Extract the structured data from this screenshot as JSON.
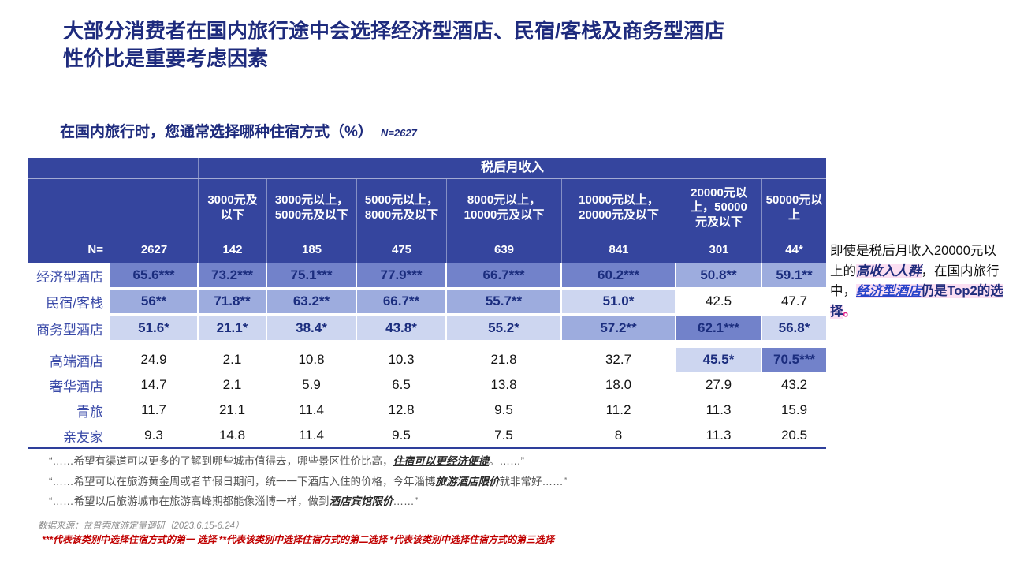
{
  "title": {
    "line1": "大部分消费者在国内旅行途中会选择经济型酒店、民宿/客栈及商务型酒店",
    "line2": "性价比是重要考虑因素"
  },
  "subtitle": {
    "text": "在国内旅行时，您通常选择哪种住宿方式（%）",
    "n": "N=2627"
  },
  "table": {
    "income_header": "税后月收入",
    "col_headers": [
      "3000元及\n以下",
      "3000元以上，\n5000元及以下",
      "5000元以上，\n8000元及以下",
      "8000元以上，\n10000元及以下",
      "10000元以上，\n20000元及以下",
      "20000元以\n上，50000\n元及以下",
      "50000元以\n上"
    ],
    "n_label": "N=",
    "n_values": [
      "2627",
      "142",
      "185",
      "475",
      "639",
      "841",
      "301",
      "44*"
    ],
    "rows": [
      {
        "label": "经济型酒店",
        "cells": [
          {
            "v": "65.6***",
            "s": 3
          },
          {
            "v": "73.2***",
            "s": 3
          },
          {
            "v": "75.1***",
            "s": 3
          },
          {
            "v": "77.9***",
            "s": 3
          },
          {
            "v": "66.7***",
            "s": 3
          },
          {
            "v": "60.2***",
            "s": 3
          },
          {
            "v": "50.8**",
            "s": 2
          },
          {
            "v": "59.1**",
            "s": 2
          }
        ]
      },
      {
        "label": "民宿/客栈",
        "cells": [
          {
            "v": "56**",
            "s": 2
          },
          {
            "v": "71.8**",
            "s": 2
          },
          {
            "v": "63.2**",
            "s": 2
          },
          {
            "v": "66.7**",
            "s": 2
          },
          {
            "v": "55.7**",
            "s": 2
          },
          {
            "v": "51.0*",
            "s": 1
          },
          {
            "v": "42.5",
            "s": 0
          },
          {
            "v": "47.7",
            "s": 0
          }
        ]
      },
      {
        "label": "商务型酒店",
        "cells": [
          {
            "v": "51.6*",
            "s": 1
          },
          {
            "v": "21.1*",
            "s": 1
          },
          {
            "v": "38.4*",
            "s": 1
          },
          {
            "v": "43.8*",
            "s": 1
          },
          {
            "v": "55.2*",
            "s": 1
          },
          {
            "v": "57.2**",
            "s": 2
          },
          {
            "v": "62.1***",
            "s": 3
          },
          {
            "v": "56.8*",
            "s": 1
          }
        ]
      },
      {
        "label": "高端酒店",
        "cells": [
          {
            "v": "24.9",
            "s": 0
          },
          {
            "v": "2.1",
            "s": 0
          },
          {
            "v": "10.8",
            "s": 0
          },
          {
            "v": "10.3",
            "s": 0
          },
          {
            "v": "21.8",
            "s": 0
          },
          {
            "v": "32.7",
            "s": 0
          },
          {
            "v": "45.5*",
            "s": 1
          },
          {
            "v": "70.5***",
            "s": 3
          }
        ]
      },
      {
        "label": "奢华酒店",
        "cells": [
          {
            "v": "14.7",
            "s": 0
          },
          {
            "v": "2.1",
            "s": 0
          },
          {
            "v": "5.9",
            "s": 0
          },
          {
            "v": "6.5",
            "s": 0
          },
          {
            "v": "13.8",
            "s": 0
          },
          {
            "v": "18.0",
            "s": 0
          },
          {
            "v": "27.9",
            "s": 0
          },
          {
            "v": "43.2",
            "s": 0
          }
        ]
      },
      {
        "label": "青旅",
        "cells": [
          {
            "v": "11.7",
            "s": 0
          },
          {
            "v": "21.1",
            "s": 0
          },
          {
            "v": "11.4",
            "s": 0
          },
          {
            "v": "12.8",
            "s": 0
          },
          {
            "v": "9.5",
            "s": 0
          },
          {
            "v": "11.2",
            "s": 0
          },
          {
            "v": "11.3",
            "s": 0
          },
          {
            "v": "15.9",
            "s": 0
          }
        ]
      },
      {
        "label": "亲友家",
        "cells": [
          {
            "v": "9.3",
            "s": 0
          },
          {
            "v": "14.8",
            "s": 0
          },
          {
            "v": "11.4",
            "s": 0
          },
          {
            "v": "9.5",
            "s": 0
          },
          {
            "v": "7.5",
            "s": 0
          },
          {
            "v": "8",
            "s": 0
          },
          {
            "v": "11.3",
            "s": 0
          },
          {
            "v": "20.5",
            "s": 0
          }
        ]
      }
    ]
  },
  "annotation": {
    "parts": [
      {
        "text": "即使是税后月收入20000元以上的",
        "style": "plain"
      },
      {
        "text": "高收入人群",
        "style": "hl-navy"
      },
      {
        "text": "，在国内旅行中，",
        "style": "plain"
      },
      {
        "text": "经济型酒店",
        "style": "hl-blue"
      },
      {
        "text": "仍是Top2的选择",
        "style": "hl-bold"
      },
      {
        "text": "。",
        "style": "red-dot"
      }
    ]
  },
  "quotes": [
    {
      "parts": [
        {
          "text": "“……希望有渠道可以更多的了解到哪些城市值得去，哪些景区性价比高，",
          "style": "q-plain"
        },
        {
          "text": "住宿可以更经济便捷",
          "style": "q-boldu"
        },
        {
          "text": "。……”",
          "style": "q-plain"
        }
      ]
    },
    {
      "parts": [
        {
          "text": "“……希望可以在旅游黄金周或者节假日期间，统一一下酒店入住的价格，今年淄博",
          "style": "q-plain"
        },
        {
          "text": "旅游酒店限价",
          "style": "q-bold"
        },
        {
          "text": "就非常好……”",
          "style": "q-plain"
        }
      ]
    },
    {
      "parts": [
        {
          "text": "“……希望以后旅游城市在旅游高峰期都能像淄博一样，做到",
          "style": "q-plain"
        },
        {
          "text": "酒店宾馆限价",
          "style": "q-bold"
        },
        {
          "text": "……”",
          "style": "q-plain"
        }
      ]
    }
  ],
  "footer": {
    "source": "数据来源：益普索旅游定量调研（2023.6.15-6.24）",
    "note": "***代表该类别中选择住宿方式的第一 选择 **代表该类别中选择住宿方式的第二选择 *代表该类别中选择住宿方式的第三选择"
  },
  "colors": {
    "title_navy": "#1E2B7D",
    "header_blue": "#35459E",
    "cell_first_choice": "#7282CA",
    "cell_second_choice": "#9DACDE",
    "cell_third_choice": "#CDD6F0",
    "cell_text_navy": "#1B2D7E",
    "highlight_pink": "#FBDFF2",
    "note_red": "#C00000"
  }
}
